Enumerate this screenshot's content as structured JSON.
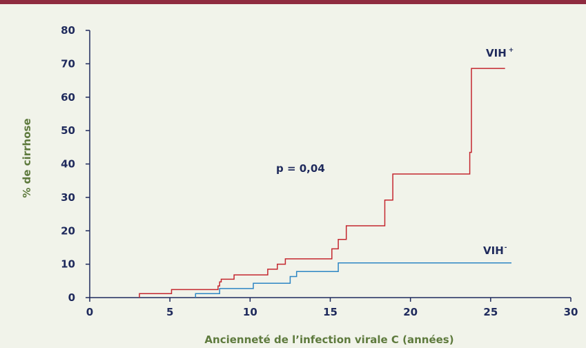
{
  "chart_data": {
    "type": "line",
    "title": "",
    "xlabel": "Ancienneté de l’infection virale C (années)",
    "ylabel": "% de cirrhose",
    "xlim": [
      0,
      30
    ],
    "ylim": [
      0,
      80
    ],
    "x_ticks": [
      "0",
      "5",
      "10",
      "15",
      "20",
      "25",
      "30"
    ],
    "y_ticks": [
      "0",
      "10",
      "20",
      "30",
      "40",
      "50",
      "60",
      "70",
      "80"
    ],
    "grid": false,
    "annotation": "p = 0,04",
    "series": [
      {
        "name": "VIH",
        "superscript": "+",
        "color": "#c4262e",
        "step": true,
        "points": [
          [
            3.1,
            0
          ],
          [
            3.1,
            1.2
          ],
          [
            5.1,
            1.2
          ],
          [
            5.1,
            2.4
          ],
          [
            8.0,
            2.4
          ],
          [
            8.0,
            3.5
          ],
          [
            8.1,
            3.5
          ],
          [
            8.1,
            4.7
          ],
          [
            8.2,
            4.7
          ],
          [
            8.2,
            5.5
          ],
          [
            9.0,
            5.5
          ],
          [
            9.0,
            6.8
          ],
          [
            11.1,
            6.8
          ],
          [
            11.1,
            8.5
          ],
          [
            11.7,
            8.5
          ],
          [
            11.7,
            10.0
          ],
          [
            12.2,
            10.0
          ],
          [
            12.2,
            11.6
          ],
          [
            15.1,
            11.6
          ],
          [
            15.1,
            14.6
          ],
          [
            15.5,
            14.6
          ],
          [
            15.5,
            17.4
          ],
          [
            16.0,
            17.4
          ],
          [
            16.0,
            21.5
          ],
          [
            18.4,
            21.5
          ],
          [
            18.4,
            29.2
          ],
          [
            18.9,
            29.2
          ],
          [
            18.9,
            37.0
          ],
          [
            23.7,
            37.0
          ],
          [
            23.7,
            43.5
          ],
          [
            23.8,
            43.5
          ],
          [
            23.8,
            68.6
          ],
          [
            25.9,
            68.6
          ]
        ]
      },
      {
        "name": "VIH",
        "superscript": "-",
        "color": "#2c85c4",
        "step": true,
        "points": [
          [
            6.6,
            0
          ],
          [
            6.6,
            1.2
          ],
          [
            8.1,
            1.2
          ],
          [
            8.1,
            2.7
          ],
          [
            10.2,
            2.7
          ],
          [
            10.2,
            4.3
          ],
          [
            12.5,
            4.3
          ],
          [
            12.5,
            6.3
          ],
          [
            12.9,
            6.3
          ],
          [
            12.9,
            7.8
          ],
          [
            15.5,
            7.8
          ],
          [
            15.5,
            10.4
          ],
          [
            26.3,
            10.4
          ]
        ]
      }
    ]
  }
}
